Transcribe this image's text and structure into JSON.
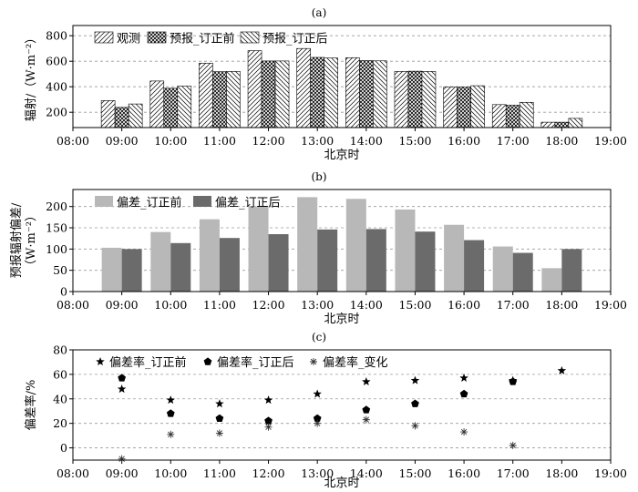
{
  "chart_data": [
    {
      "panel": "(a)",
      "type": "bar",
      "xlabel": "北京时",
      "ylabel": "辐射/（W·m⁻²）",
      "ylim": [
        80,
        880
      ],
      "yticks": [
        "200",
        "400",
        "600",
        "800"
      ],
      "xticks": [
        "08:00",
        "09:00",
        "10:00",
        "11:00",
        "12:00",
        "13:00",
        "14:00",
        "15:00",
        "16:00",
        "17:00",
        "18:00",
        "19:00"
      ],
      "categories": [
        "09:00",
        "10:00",
        "11:00",
        "12:00",
        "13:00",
        "14:00",
        "15:00",
        "16:00",
        "17:00",
        "18:00"
      ],
      "grid": true,
      "legend_position": "top-left",
      "series": [
        {
          "name": "观测",
          "pattern": "diag-forward",
          "values": [
            292,
            445,
            585,
            683,
            700,
            628,
            520,
            397,
            260,
            122
          ]
        },
        {
          "name": "预报_订正前",
          "pattern": "cross-hatch",
          "values": [
            238,
            388,
            518,
            602,
            630,
            605,
            522,
            397,
            255,
            122
          ]
        },
        {
          "name": "预报_订正后",
          "pattern": "diag-backward",
          "values": [
            265,
            405,
            520,
            602,
            625,
            603,
            520,
            408,
            278,
            152
          ]
        }
      ]
    },
    {
      "panel": "(b)",
      "type": "bar",
      "xlabel": "北京时",
      "ylabel": [
        "预报辐射偏差/",
        "（W·m⁻²）"
      ],
      "ylim": [
        0,
        240
      ],
      "yticks": [
        "0",
        "50",
        "100",
        "150",
        "200"
      ],
      "xticks": [
        "08:00",
        "09:00",
        "10:00",
        "11:00",
        "12:00",
        "13:00",
        "14:00",
        "15:00",
        "16:00",
        "17:00",
        "18:00",
        "19:00"
      ],
      "categories": [
        "09:00",
        "10:00",
        "11:00",
        "12:00",
        "13:00",
        "14:00",
        "15:00",
        "16:00",
        "17:00",
        "18:00"
      ],
      "grid": true,
      "legend_position": "top-left",
      "series": [
        {
          "name": "偏差_订正前",
          "color": "#b8b8b8",
          "values": [
            103,
            140,
            170,
            200,
            222,
            218,
            193,
            157,
            106,
            55
          ]
        },
        {
          "name": "偏差_订正后",
          "color": "#6b6b6b",
          "values": [
            100,
            114,
            126,
            135,
            146,
            147,
            141,
            121,
            91,
            100
          ]
        }
      ]
    },
    {
      "panel": "(c)",
      "type": "scatter",
      "xlabel": "北京时",
      "ylabel": "偏差率/%",
      "ylim": [
        -10,
        80
      ],
      "yticks": [
        "0",
        "20",
        "40",
        "60",
        "80"
      ],
      "xticks": [
        "08:00",
        "09:00",
        "10:00",
        "11:00",
        "12:00",
        "13:00",
        "14:00",
        "15:00",
        "16:00",
        "17:00",
        "18:00",
        "19:00"
      ],
      "grid": true,
      "legend_position": "top-left",
      "series": [
        {
          "name": "偏差率_订正前",
          "marker": "star",
          "points": [
            [
              "09:00",
              48
            ],
            [
              "10:00",
              39
            ],
            [
              "11:00",
              36
            ],
            [
              "12:00",
              39
            ],
            [
              "13:00",
              44
            ],
            [
              "14:00",
              54
            ],
            [
              "15:00",
              55
            ],
            [
              "16:00",
              57
            ],
            [
              "17:00",
              55
            ],
            [
              "18:00",
              63
            ]
          ]
        },
        {
          "name": "偏差率_订正后",
          "marker": "pentagon",
          "points": [
            [
              "09:00",
              57
            ],
            [
              "10:00",
              28
            ],
            [
              "11:00",
              24
            ],
            [
              "12:00",
              22
            ],
            [
              "13:00",
              24
            ],
            [
              "14:00",
              31
            ],
            [
              "15:00",
              36
            ],
            [
              "16:00",
              44
            ],
            [
              "17:00",
              54
            ]
          ]
        },
        {
          "name": "偏差率_变化",
          "marker": "asterisk",
          "points": [
            [
              "09:00",
              -9
            ],
            [
              "10:00",
              11
            ],
            [
              "11:00",
              12
            ],
            [
              "12:00",
              17
            ],
            [
              "13:00",
              20
            ],
            [
              "14:00",
              23
            ],
            [
              "15:00",
              18
            ],
            [
              "16:00",
              13
            ],
            [
              "17:00",
              2
            ]
          ]
        }
      ]
    }
  ]
}
